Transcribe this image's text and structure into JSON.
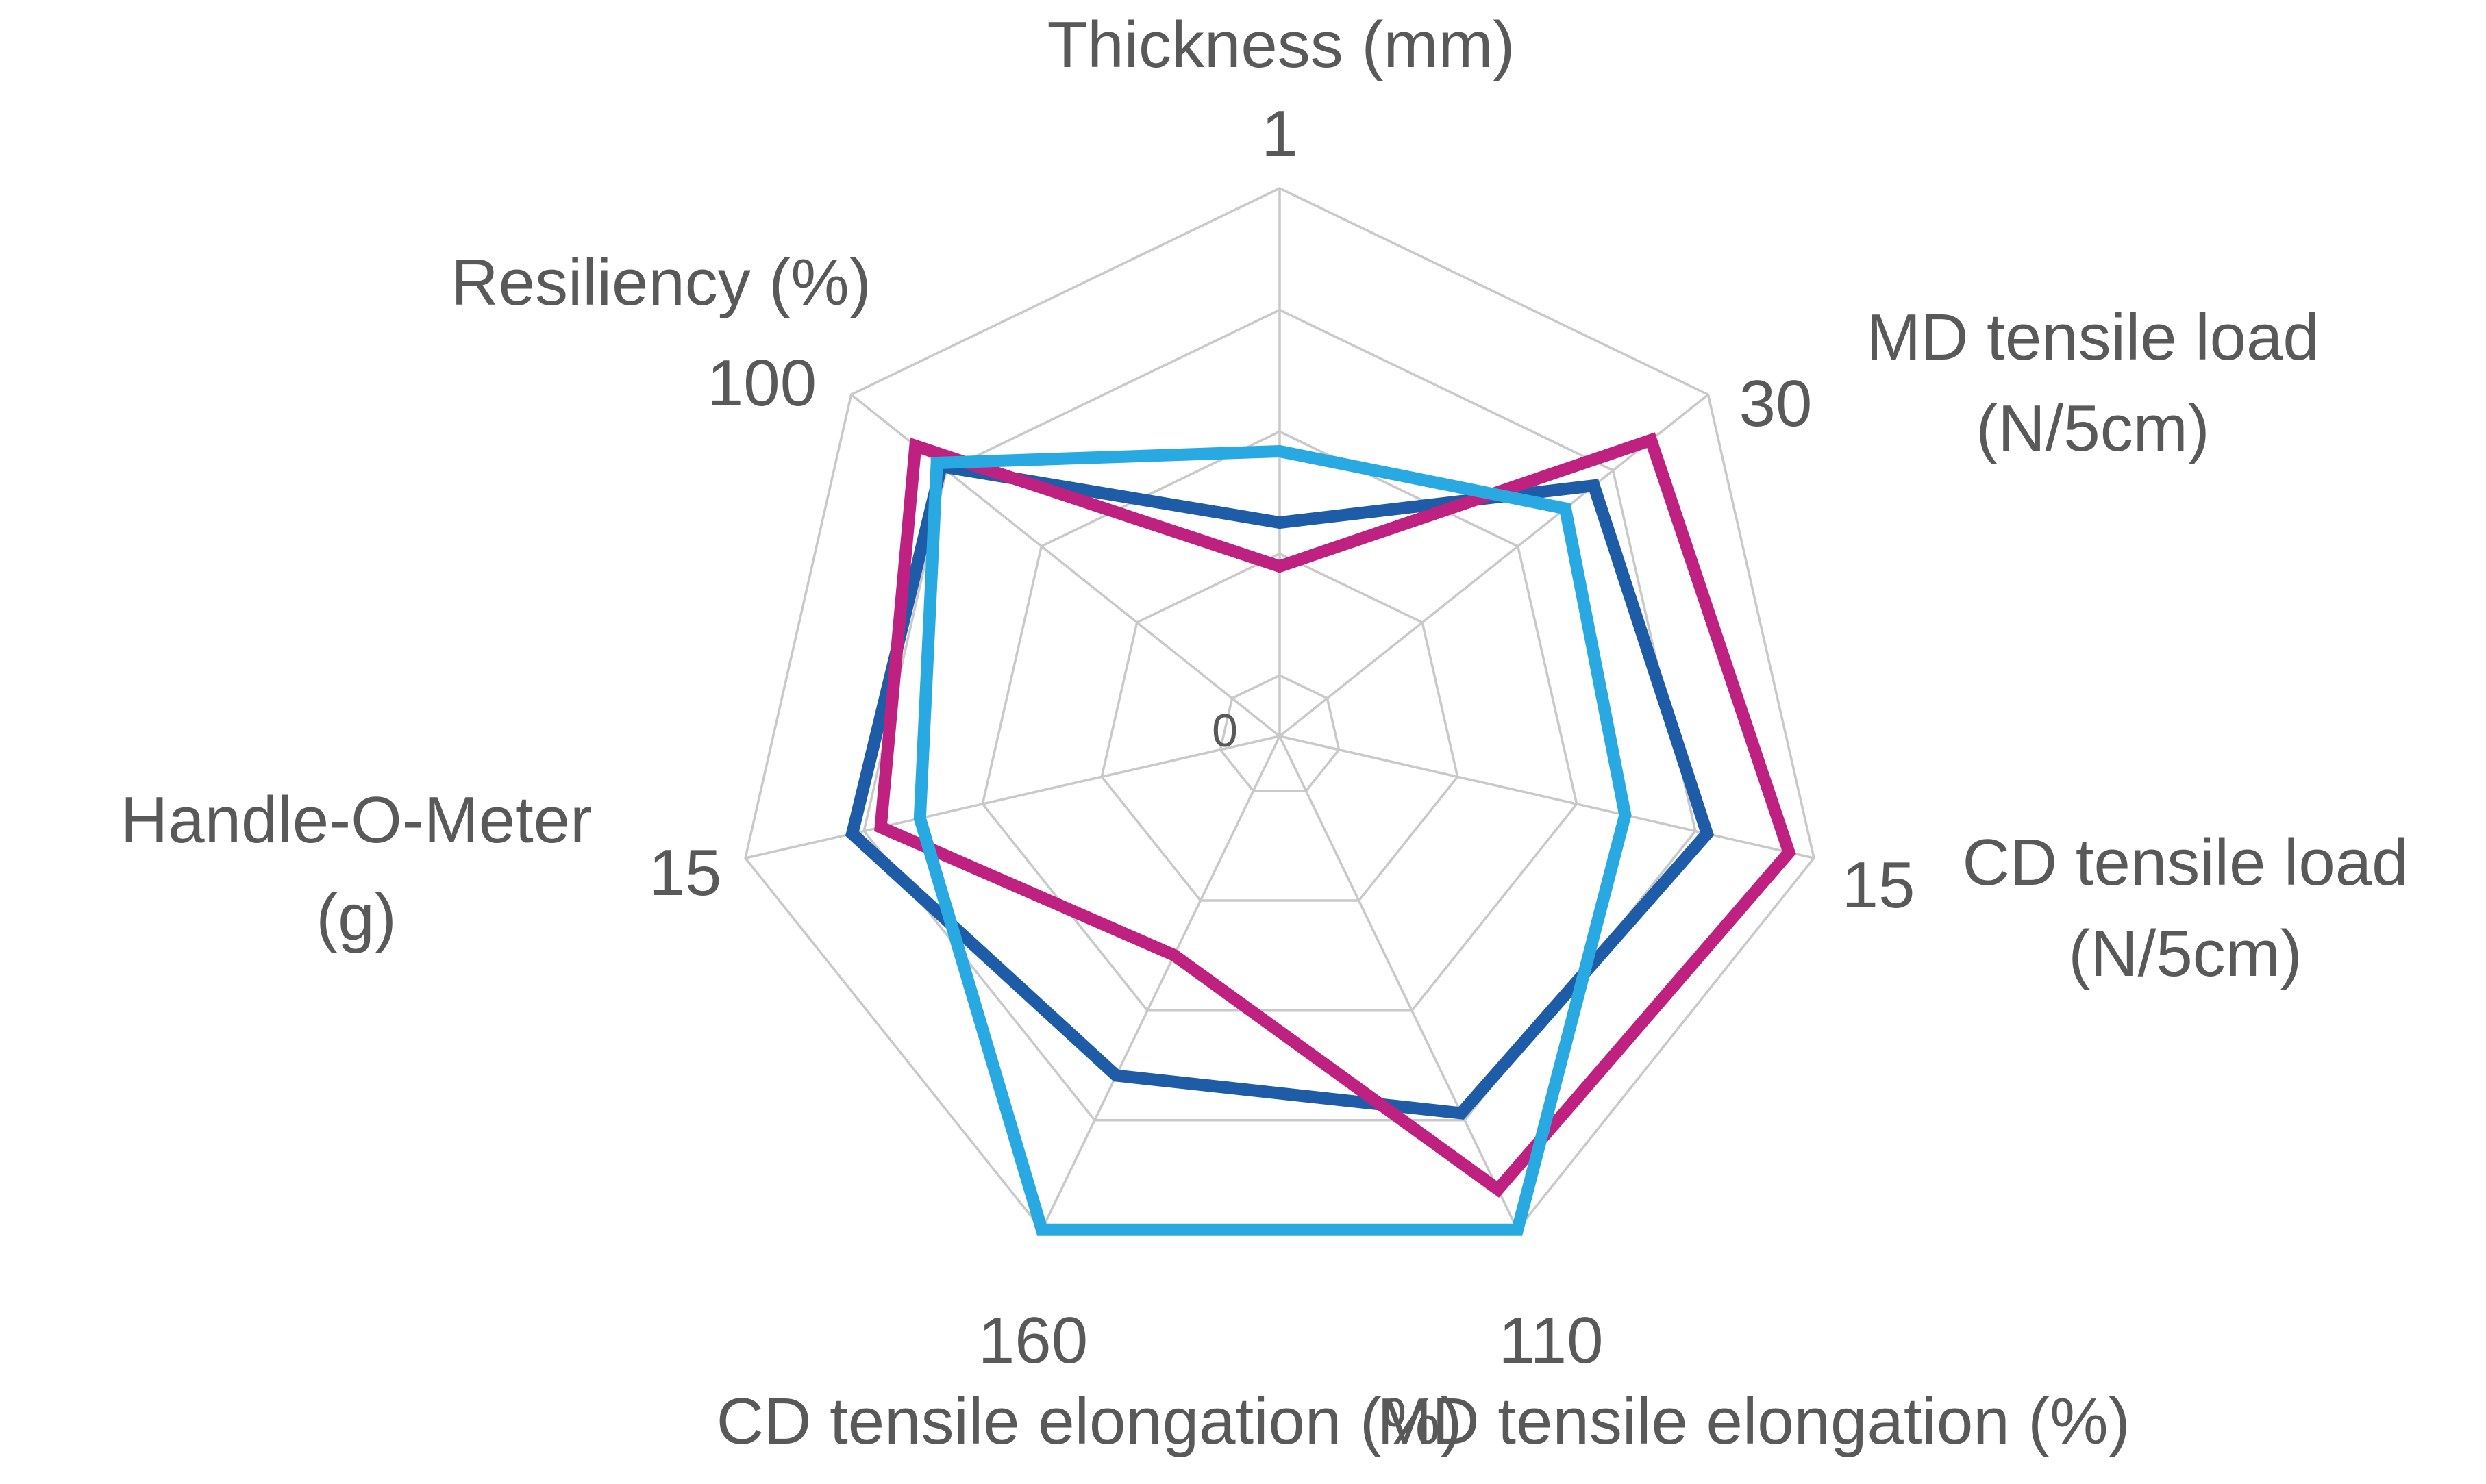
{
  "chart_data": {
    "type": "radar",
    "axis_count": 7,
    "axes": [
      {
        "id": "thickness",
        "label_lines": [
          "Thickness (mm)"
        ],
        "tick": "1",
        "max": 1
      },
      {
        "id": "md-load",
        "label_lines": [
          "MD tensile load",
          "(N/5cm)"
        ],
        "tick": "30",
        "max": 30
      },
      {
        "id": "cd-load",
        "label_lines": [
          "CD tensile load",
          "(N/5cm)"
        ],
        "tick": "15",
        "max": 15
      },
      {
        "id": "md-elong",
        "label_lines": [
          "MD tensile elongation (%)"
        ],
        "tick": "110",
        "max": 110
      },
      {
        "id": "cd-elong",
        "label_lines": [
          "CD tensile elongation (%)"
        ],
        "tick": "160",
        "max": 160
      },
      {
        "id": "handle-o-meter",
        "label_lines": [
          "Handle-O-Meter",
          "(g)"
        ],
        "tick": "15",
        "max": 15
      },
      {
        "id": "resiliency",
        "label_lines": [
          "Resiliency (%)"
        ],
        "tick": "100",
        "max": 100
      }
    ],
    "center_label": "0",
    "series": [
      {
        "name": "dark-blue-series",
        "color": "#1E5CA8",
        "values": [
          0.39,
          22,
          12,
          84,
          110,
          12,
          79
        ]
      },
      {
        "name": "magenta-series",
        "color": "#BE2180",
        "values": [
          0.31,
          26,
          14.3,
          101,
          71,
          11.2,
          85
        ]
      },
      {
        "name": "cyan-series",
        "color": "#29A9E1",
        "values": [
          0.52,
          20,
          9.7,
          110,
          160,
          10.1,
          80
        ]
      }
    ],
    "ring_fractions": [
      0.111,
      0.333,
      0.556,
      0.778,
      1.0
    ],
    "grid_on": true,
    "legend": "none",
    "grid_color": "#c9c9c9",
    "label_color": "#595959"
  }
}
